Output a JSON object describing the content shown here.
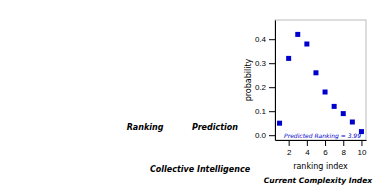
{
  "chart_data": {
    "type": "scatter",
    "x": [
      1,
      2,
      3,
      4,
      5,
      6,
      7,
      8,
      9,
      10
    ],
    "values": [
      0.05,
      0.32,
      0.42,
      0.38,
      0.26,
      0.18,
      0.12,
      0.09,
      0.055,
      0.015
    ],
    "color": "#0000cd",
    "marker": "square",
    "xlabel": "ranking index",
    "ylabel": "probability",
    "xlim": [
      0.5,
      10.5
    ],
    "ylim": [
      -0.02,
      0.48
    ],
    "xticks": [
      2,
      4,
      6,
      8,
      10
    ],
    "yticks": [
      {
        "value": 0.0,
        "label": "0.0"
      },
      0.1,
      0.2,
      0.3,
      0.4
    ],
    "annotations": [
      "Predicted Ranking = 3.99",
      "Ranking",
      "Prediction",
      "Collective Intelligence",
      "Current Complexity Index"
    ]
  }
}
